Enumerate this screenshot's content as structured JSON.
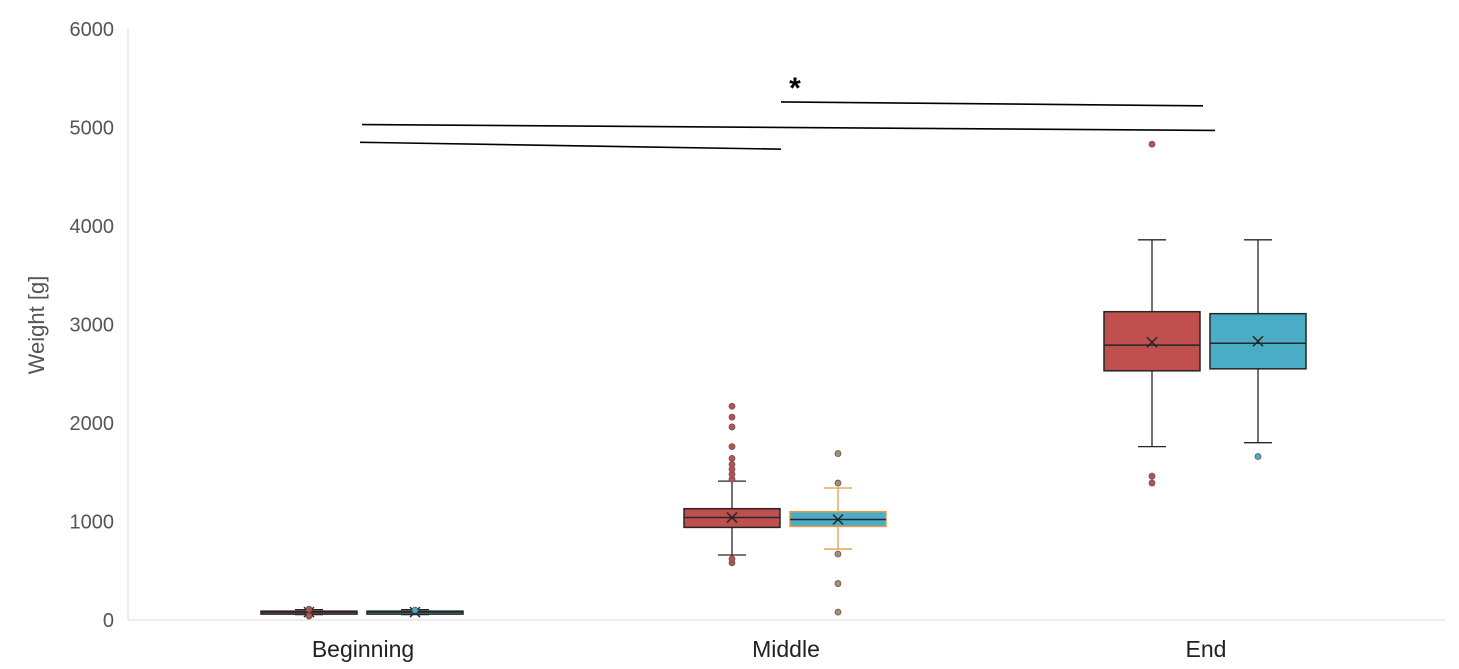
{
  "chart_data": {
    "type": "boxplot",
    "ylabel": "Weight [g]",
    "ylim": [
      0,
      6000
    ],
    "yticks": [
      0,
      1000,
      2000,
      3000,
      4000,
      5000,
      6000
    ],
    "grid": false,
    "categories": [
      "Beginning",
      "Middle",
      "End"
    ],
    "series_colors": [
      "#c0504d",
      "#4bacc6"
    ],
    "groups": [
      {
        "category": "Beginning",
        "boxes": [
          {
            "color": "#c0504d",
            "min": 55,
            "q1": 70,
            "median": 80,
            "q3": 90,
            "max": 105,
            "mean": 80,
            "outliers": [
              40,
              110
            ]
          },
          {
            "color": "#4bacc6",
            "min": 55,
            "q1": 70,
            "median": 80,
            "q3": 90,
            "max": 105,
            "mean": 80,
            "outliers": [
              100
            ]
          }
        ]
      },
      {
        "category": "Middle",
        "boxes": [
          {
            "color": "#c0504d",
            "min": 660,
            "q1": 940,
            "median": 1040,
            "q3": 1130,
            "max": 1410,
            "mean": 1040,
            "outliers": [
              580,
              620,
              1430,
              1480,
              1530,
              1580,
              1640,
              1760,
              1960,
              2060,
              2170
            ]
          },
          {
            "color": "#4bacc6",
            "whisker_color": "#e39c4d",
            "min": 720,
            "q1": 950,
            "median": 1020,
            "q3": 1100,
            "max": 1340,
            "mean": 1020,
            "outliers": [
              80,
              370,
              670,
              1390,
              1690
            ]
          }
        ]
      },
      {
        "category": "End",
        "boxes": [
          {
            "color": "#c0504d",
            "min": 1760,
            "q1": 2530,
            "median": 2790,
            "q3": 3130,
            "max": 3860,
            "mean": 2820,
            "outliers": [
              1390,
              1460,
              4830
            ]
          },
          {
            "color": "#4bacc6",
            "min": 1800,
            "q1": 2550,
            "median": 2810,
            "q3": 3110,
            "max": 3860,
            "mean": 2830,
            "outliers": [
              1660
            ]
          }
        ]
      }
    ],
    "annotations": [
      {
        "type": "bracket-line",
        "from": "Beginning",
        "to": "Middle",
        "y": [
          4850,
          4780
        ]
      },
      {
        "type": "bracket-line",
        "from": "Beginning",
        "to": "End",
        "y": [
          5030,
          4970
        ]
      },
      {
        "type": "bracket-line",
        "from": "Middle",
        "to": "End",
        "y": [
          5260,
          5220
        ],
        "label": "*"
      }
    ]
  }
}
